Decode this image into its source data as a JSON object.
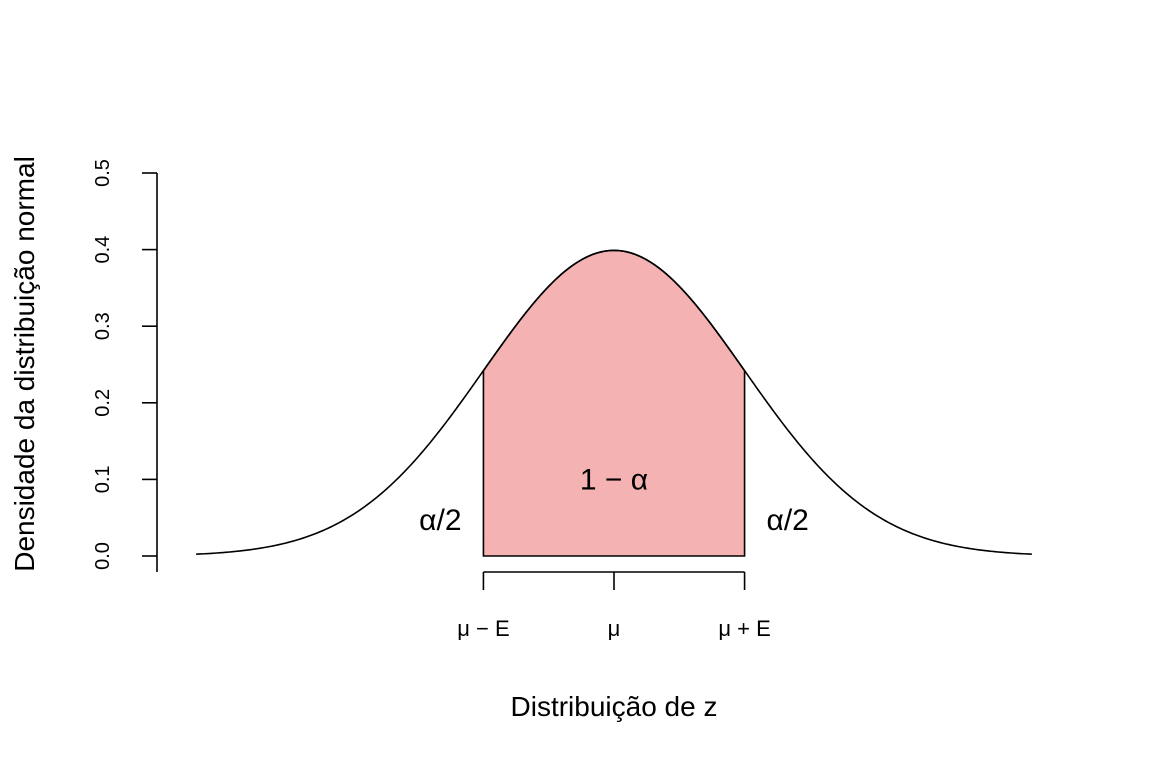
{
  "chart_data": {
    "type": "area",
    "title": "",
    "xlabel": "Distribuição de z",
    "ylabel": "Densidade da distribuição normal",
    "xlim": [
      -3.5,
      3.5
    ],
    "ylim": [
      0,
      0.5
    ],
    "yticks": [
      0.0,
      0.1,
      0.2,
      0.3,
      0.4,
      0.5
    ],
    "ytick_labels": [
      "0.0",
      "0.1",
      "0.2",
      "0.3",
      "0.4",
      "0.5"
    ],
    "xticks": [
      -1,
      0,
      1
    ],
    "xtick_labels": [
      "μ − E",
      "μ",
      "μ + E"
    ],
    "curve": {
      "distribution": "normal",
      "mean": 0,
      "sd": 1,
      "x_range": [
        -3.2,
        3.2
      ],
      "peak_density": 0.399
    },
    "shaded_region": {
      "x_from": -1,
      "x_to": 1,
      "color": "#f4b2b2"
    },
    "line_color": "#000000",
    "annotations": [
      {
        "text": "1 − α",
        "x": 0,
        "y": 0.1
      },
      {
        "text": "α/2",
        "x": -1.33,
        "y": 0.047
      },
      {
        "text": "α/2",
        "x": 1.33,
        "y": 0.047
      }
    ],
    "grid": false,
    "legend": "none"
  }
}
